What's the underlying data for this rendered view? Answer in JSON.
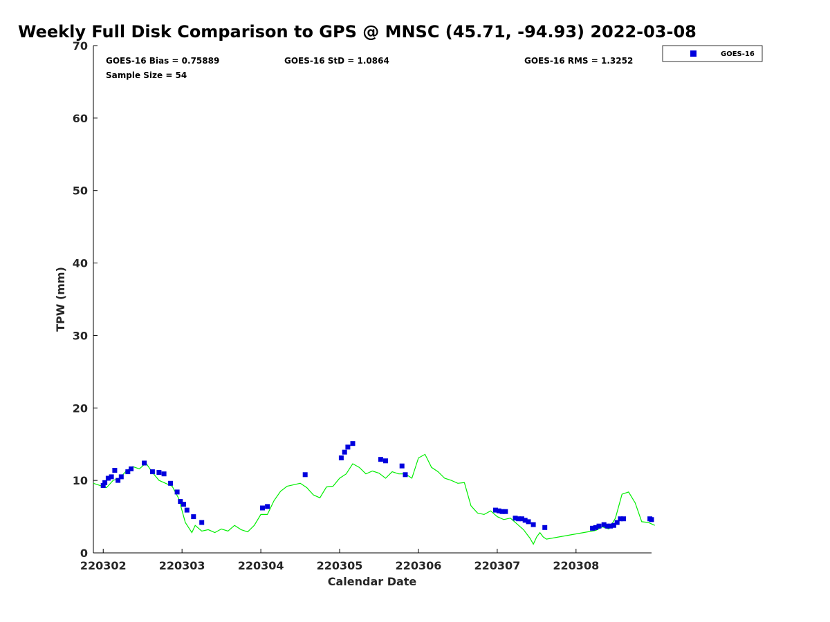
{
  "chart_data": {
    "type": "scatter",
    "title": "Weekly Full Disk Comparison to GPS @ MNSC (45.71, -94.93) 2022-03-08",
    "xlabel": "Calendar Date",
    "ylabel": "TPW (mm)",
    "xlim": [
      "2022-03-01T21:00",
      "2022-03-08T23:00"
    ],
    "ylim": [
      0,
      70
    ],
    "yticks": [
      0,
      10,
      20,
      30,
      40,
      50,
      60,
      70
    ],
    "xticks": [
      {
        "value": "2022-03-02T00:00",
        "label": "220302"
      },
      {
        "value": "2022-03-03T00:00",
        "label": "220303"
      },
      {
        "value": "2022-03-04T00:00",
        "label": "220304"
      },
      {
        "value": "2022-03-05T00:00",
        "label": "220305"
      },
      {
        "value": "2022-03-06T00:00",
        "label": "220306"
      },
      {
        "value": "2022-03-07T00:00",
        "label": "220307"
      },
      {
        "value": "2022-03-08T00:00",
        "label": "220308"
      }
    ],
    "grid": false,
    "legend_position": "top-right",
    "stats": {
      "bias": "GOES-16 Bias = 0.75889",
      "std": "GOES-16 StD = 1.0864",
      "rms": "GOES-16 RMS = 1.3252",
      "sample": "Sample Size = 54"
    },
    "series": [
      {
        "name": "GOES-16",
        "kind": "scatter",
        "color": "#0000dd",
        "x": [
          "2022-03-02T00:00",
          "2022-03-02T00:30",
          "2022-03-02T01:30",
          "2022-03-02T02:30",
          "2022-03-02T03:30",
          "2022-03-02T04:30",
          "2022-03-02T05:30",
          "2022-03-02T07:30",
          "2022-03-02T08:30",
          "2022-03-02T12:30",
          "2022-03-02T15:00",
          "2022-03-02T17:00",
          "2022-03-02T18:30",
          "2022-03-02T20:30",
          "2022-03-02T22:30",
          "2022-03-02T23:30",
          "2022-03-03T00:30",
          "2022-03-03T01:30",
          "2022-03-03T03:30",
          "2022-03-03T06:00",
          "2022-03-04T00:30",
          "2022-03-04T02:00",
          "2022-03-04T13:30",
          "2022-03-05T00:30",
          "2022-03-05T01:30",
          "2022-03-05T02:30",
          "2022-03-05T04:00",
          "2022-03-05T12:30",
          "2022-03-05T14:00",
          "2022-03-05T19:00",
          "2022-03-05T20:00",
          "2022-03-06T23:30",
          "2022-03-07T00:30",
          "2022-03-07T01:30",
          "2022-03-07T02:30",
          "2022-03-07T05:30",
          "2022-03-07T06:30",
          "2022-03-07T07:30",
          "2022-03-07T08:30",
          "2022-03-07T09:30",
          "2022-03-07T11:00",
          "2022-03-07T14:30",
          "2022-03-08T05:00",
          "2022-03-08T06:00",
          "2022-03-08T07:00",
          "2022-03-08T08:30",
          "2022-03-08T09:30",
          "2022-03-08T10:30",
          "2022-03-08T11:30",
          "2022-03-08T12:30",
          "2022-03-08T13:30",
          "2022-03-08T14:30",
          "2022-03-08T22:30",
          "2022-03-08T23:00"
        ],
        "y": [
          9.3,
          9.7,
          10.3,
          10.5,
          11.4,
          10.0,
          10.5,
          11.2,
          11.6,
          12.4,
          11.2,
          11.1,
          10.9,
          9.6,
          8.4,
          7.1,
          6.7,
          5.9,
          5.0,
          4.2,
          6.2,
          6.4,
          10.8,
          13.1,
          13.9,
          14.6,
          15.1,
          12.9,
          12.7,
          12.0,
          10.8,
          5.9,
          5.8,
          5.7,
          5.7,
          4.8,
          4.7,
          4.7,
          4.5,
          4.3,
          3.9,
          3.5,
          3.4,
          3.5,
          3.7,
          3.9,
          3.7,
          3.7,
          3.8,
          4.2,
          4.7,
          4.7,
          4.7,
          4.6
        ]
      },
      {
        "name": "",
        "kind": "line",
        "color": "#00ee00",
        "x": [
          "2022-03-01T21:00",
          "2022-03-02T01:00",
          "2022-03-02T03:00",
          "2022-03-02T05:00",
          "2022-03-02T07:00",
          "2022-03-02T09:00",
          "2022-03-02T11:00",
          "2022-03-02T13:00",
          "2022-03-02T15:00",
          "2022-03-02T17:00",
          "2022-03-02T19:00",
          "2022-03-02T21:00",
          "2022-03-02T23:00",
          "2022-03-03T01:00",
          "2022-03-03T03:00",
          "2022-03-03T04:00",
          "2022-03-03T06:00",
          "2022-03-03T08:00",
          "2022-03-03T10:00",
          "2022-03-03T12:00",
          "2022-03-03T14:00",
          "2022-03-03T16:00",
          "2022-03-03T18:00",
          "2022-03-03T20:00",
          "2022-03-03T22:00",
          "2022-03-04T00:00",
          "2022-03-04T02:00",
          "2022-03-04T04:00",
          "2022-03-04T06:00",
          "2022-03-04T08:00",
          "2022-03-04T10:00",
          "2022-03-04T12:00",
          "2022-03-04T14:00",
          "2022-03-04T16:00",
          "2022-03-04T18:00",
          "2022-03-04T20:00",
          "2022-03-04T22:00",
          "2022-03-05T00:00",
          "2022-03-05T02:00",
          "2022-03-05T04:00",
          "2022-03-05T06:00",
          "2022-03-05T08:00",
          "2022-03-05T10:00",
          "2022-03-05T12:00",
          "2022-03-05T14:00",
          "2022-03-05T16:00",
          "2022-03-05T18:00",
          "2022-03-05T20:00",
          "2022-03-05T22:00",
          "2022-03-06T00:00",
          "2022-03-06T02:00",
          "2022-03-06T04:00",
          "2022-03-06T06:00",
          "2022-03-06T08:00",
          "2022-03-06T10:00",
          "2022-03-06T12:00",
          "2022-03-06T14:00",
          "2022-03-06T16:00",
          "2022-03-06T18:00",
          "2022-03-06T20:00",
          "2022-03-06T22:00",
          "2022-03-07T00:00",
          "2022-03-07T02:00",
          "2022-03-07T04:00",
          "2022-03-07T06:00",
          "2022-03-07T08:00",
          "2022-03-07T10:00",
          "2022-03-07T11:00",
          "2022-03-07T12:00",
          "2022-03-07T13:00",
          "2022-03-07T14:00",
          "2022-03-07T15:00",
          "2022-03-08T06:00",
          "2022-03-08T08:00",
          "2022-03-08T10:00",
          "2022-03-08T12:00",
          "2022-03-08T14:00",
          "2022-03-08T16:00",
          "2022-03-08T18:00",
          "2022-03-08T20:00",
          "2022-03-08T22:00",
          "2022-03-09T00:00"
        ],
        "y": [
          9.6,
          9.0,
          10.0,
          10.3,
          11.3,
          11.9,
          11.6,
          12.4,
          11.1,
          10.0,
          9.6,
          9.2,
          7.5,
          4.2,
          2.8,
          3.8,
          3.0,
          3.2,
          2.8,
          3.3,
          3.0,
          3.8,
          3.2,
          2.9,
          3.8,
          5.3,
          5.3,
          7.2,
          8.5,
          9.2,
          9.4,
          9.6,
          9.0,
          8.0,
          7.6,
          9.1,
          9.2,
          10.3,
          10.9,
          12.3,
          11.8,
          10.9,
          11.3,
          11.0,
          10.3,
          11.2,
          10.9,
          10.9,
          10.3,
          13.1,
          13.6,
          11.8,
          11.2,
          10.3,
          10.0,
          9.6,
          9.7,
          6.5,
          5.5,
          5.3,
          5.8,
          5.0,
          4.6,
          4.8,
          4.0,
          3.2,
          2.0,
          1.2,
          2.2,
          2.8,
          2.2,
          1.9,
          3.1,
          3.6,
          3.3,
          4.8,
          8.1,
          8.4,
          6.9,
          4.3,
          4.2,
          3.8
        ]
      }
    ]
  }
}
